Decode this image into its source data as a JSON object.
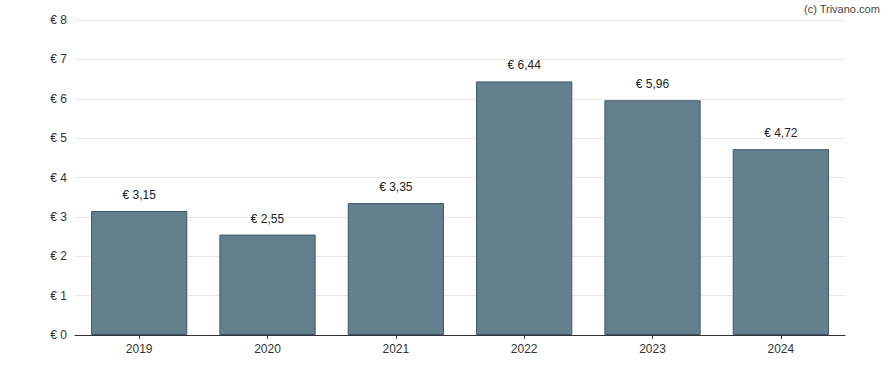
{
  "chart_data": {
    "type": "bar",
    "annotations": [
      "(c) Trivano.com"
    ],
    "categories": [
      "2019",
      "2020",
      "2021",
      "2022",
      "2023",
      "2024"
    ],
    "values": [
      3.15,
      2.55,
      3.35,
      6.44,
      5.96,
      4.72
    ],
    "value_labels": [
      "€ 3,15",
      "€ 2,55",
      "€ 3,35",
      "€ 6,44",
      "€ 5,96",
      "€ 4,72"
    ],
    "data_labels": true,
    "color": "#64808f",
    "ylim": [
      0,
      8
    ],
    "yticks": [
      {
        "value": 0,
        "label": "€ 0"
      },
      {
        "value": 1,
        "label": "€ 1"
      },
      {
        "value": 2,
        "label": "€ 2"
      },
      {
        "value": 3,
        "label": "€ 3"
      },
      {
        "value": 4,
        "label": "€ 4"
      },
      {
        "value": 5,
        "label": "€ 5"
      },
      {
        "value": 6,
        "label": "€ 6"
      },
      {
        "value": 7,
        "label": "€ 7"
      },
      {
        "value": 8,
        "label": "€ 8"
      }
    ],
    "grid": true
  }
}
